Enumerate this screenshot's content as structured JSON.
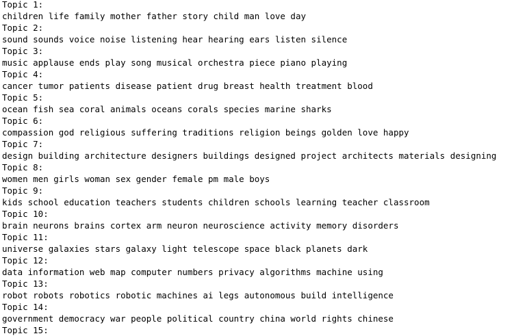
{
  "topics": [
    {
      "label": "Topic 1:",
      "words": "children life family mother father story child man love day"
    },
    {
      "label": "Topic 2:",
      "words": "sound sounds voice noise listening hear hearing ears listen silence"
    },
    {
      "label": "Topic 3:",
      "words": "music applause ends play song musical orchestra piece piano playing"
    },
    {
      "label": "Topic 4:",
      "words": "cancer tumor patients disease patient drug breast health treatment blood"
    },
    {
      "label": "Topic 5:",
      "words": "ocean fish sea coral animals oceans corals species marine sharks"
    },
    {
      "label": "Topic 6:",
      "words": "compassion god religious suffering traditions religion beings golden love happy"
    },
    {
      "label": "Topic 7:",
      "words": "design building architecture designers buildings designed project architects materials designing"
    },
    {
      "label": "Topic 8:",
      "words": "women men girls woman sex gender female pm male boys"
    },
    {
      "label": "Topic 9:",
      "words": "kids school education teachers students children schools learning teacher classroom"
    },
    {
      "label": "Topic 10:",
      "words": "brain neurons brains cortex arm neuron neuroscience activity memory disorders"
    },
    {
      "label": "Topic 11:",
      "words": "universe galaxies stars galaxy light telescope space black planets dark"
    },
    {
      "label": "Topic 12:",
      "words": "data information web map computer numbers privacy algorithms machine using"
    },
    {
      "label": "Topic 13:",
      "words": "robot robots robotics robotic machines ai legs autonomous build intelligence"
    },
    {
      "label": "Topic 14:",
      "words": "government democracy war people political country china world rights chinese"
    },
    {
      "label": "Topic 15:"
    }
  ]
}
